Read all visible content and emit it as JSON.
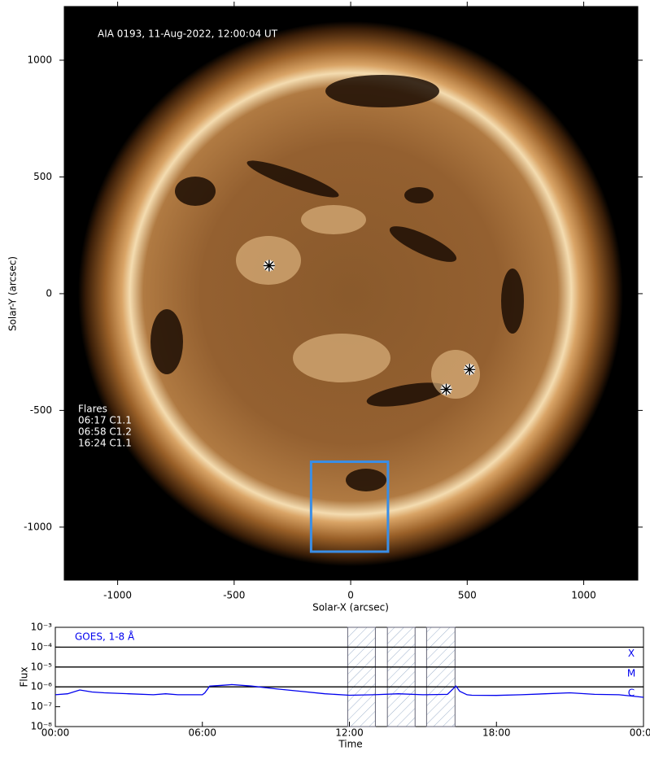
{
  "chart_data": [
    {
      "type": "image",
      "title": "AIA 0193, 11-Aug-2022, 12:00:04 UT",
      "xlabel": "Solar-X (arcsec)",
      "ylabel": "Solar-Y (arcsec)",
      "xlim": [
        -1229,
        1232
      ],
      "ylim": [
        -1227,
        1230
      ],
      "xticks": [
        -1000,
        -500,
        0,
        500,
        1000
      ],
      "yticks": [
        -1000,
        -500,
        0,
        500,
        1000
      ],
      "markers": {
        "x": [
          -350,
          510,
          410
        ],
        "y": [
          120,
          -325,
          -410
        ]
      },
      "box": {
        "xlim": [
          -170,
          160
        ],
        "ylim": [
          -1105,
          -720
        ],
        "color": "#3a8ee6"
      },
      "flares": {
        "title": "Flares",
        "items": [
          "06:17 C1.1",
          "06:58 C1.2",
          "16:24 C1.1"
        ]
      }
    },
    {
      "type": "line",
      "xlabel": "Time",
      "ylabel": "Flux",
      "log_y": true,
      "xlim": [
        0,
        24
      ],
      "xticks": [
        {
          "value": 0,
          "label": "00:00"
        },
        {
          "value": 6,
          "label": "06:00"
        },
        {
          "value": 12,
          "label": "12:00"
        },
        {
          "value": 18,
          "label": "18:00"
        },
        {
          "value": 24,
          "label": "00:00"
        }
      ],
      "ylim": [
        1e-08,
        0.001
      ],
      "yticks": [
        {
          "value": 1e-08,
          "label": "10⁻⁸"
        },
        {
          "value": 1e-07,
          "label": "10⁻⁷"
        },
        {
          "value": 1e-06,
          "label": "10⁻⁶"
        },
        {
          "value": 1e-05,
          "label": "10⁻⁵"
        },
        {
          "value": 0.0001,
          "label": "10⁻⁴"
        },
        {
          "value": 0.001,
          "label": "10⁻³"
        }
      ],
      "classes": [
        {
          "label": "X",
          "value": 0.0001
        },
        {
          "label": "M",
          "value": 1e-05
        },
        {
          "label": "C",
          "value": 1e-06
        }
      ],
      "spans": [
        [
          11.93,
          13.06
        ],
        [
          13.55,
          14.68
        ],
        [
          15.15,
          16.31
        ]
      ],
      "x": [
        0,
        0.5,
        1,
        1.5,
        2,
        3,
        4,
        4.5,
        5,
        6,
        6.1,
        6.3,
        6.8,
        7.2,
        8,
        9,
        10,
        11,
        12,
        13,
        14,
        15,
        16,
        16.35,
        16.5,
        16.8,
        17,
        18,
        19,
        20,
        21,
        22,
        23,
        24
      ],
      "series": [
        {
          "name": "GOES, 1-8 Å",
          "color": "#0000ee",
          "values": [
            4e-07,
            4.5e-07,
            7e-07,
            5.5e-07,
            5e-07,
            4.5e-07,
            4e-07,
            4.5e-07,
            4e-07,
            4e-07,
            5e-07,
            1.1e-06,
            1.2e-06,
            1.3e-06,
            1.1e-06,
            8e-07,
            6e-07,
            4.5e-07,
            3.8e-07,
            4e-07,
            4.5e-07,
            4e-07,
            4.2e-07,
            1.1e-06,
            6e-07,
            4e-07,
            3.8e-07,
            3.7e-07,
            4e-07,
            4.5e-07,
            5e-07,
            4.2e-07,
            4e-07,
            3e-07
          ]
        }
      ]
    }
  ]
}
